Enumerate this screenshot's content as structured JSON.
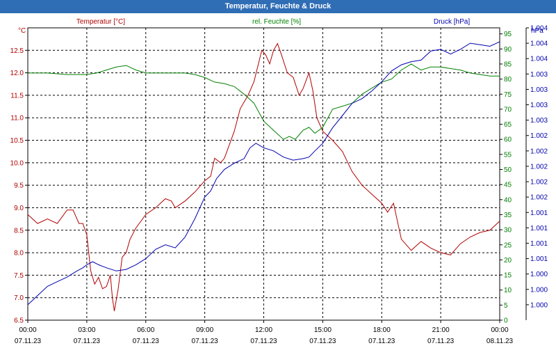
{
  "window": {
    "title": "Temperatur, Feuchte & Druck"
  },
  "colors": {
    "temp": "#b00000",
    "hum": "#008000",
    "press": "#0000b0",
    "axis": "#000000",
    "grid": "#000000",
    "titlebar": "#2f6db5"
  },
  "chart_data": {
    "type": "line",
    "title": "Temperatur, Feuchte & Druck",
    "grid": true,
    "x_ticks": [
      {
        "time": "00:00",
        "date": "07.11.23"
      },
      {
        "time": "03:00",
        "date": "07.11.23"
      },
      {
        "time": "06:00",
        "date": "07.11.23"
      },
      {
        "time": "09:00",
        "date": "07.11.23"
      },
      {
        "time": "12:00",
        "date": "07.11.23"
      },
      {
        "time": "15:00",
        "date": "07.11.23"
      },
      {
        "time": "18:00",
        "date": "07.11.23"
      },
      {
        "time": "21:00",
        "date": "07.11.23"
      },
      {
        "time": "00:00",
        "date": "08.11.23"
      }
    ],
    "x_range_hours": [
      0,
      24
    ],
    "axes": {
      "temp": {
        "unit": "°C",
        "range": [
          6.5,
          13.0
        ],
        "ticks": [
          "6.5",
          "7.0",
          "7.5",
          "8.0",
          "8.5",
          "9.0",
          "9.5",
          "10.0",
          "10.5",
          "11.0",
          "11.5",
          "12.0",
          "12.5"
        ]
      },
      "hum": {
        "unit": "%",
        "range": [
          0,
          97
        ],
        "ticks": [
          "0",
          "5",
          "10",
          "15",
          "20",
          "25",
          "30",
          "35",
          "40",
          "45",
          "50",
          "55",
          "60",
          "65",
          "70",
          "75",
          "80",
          "85",
          "90",
          "95"
        ]
      },
      "press": {
        "unit": "hPa",
        "range": [
          0,
          19
        ],
        "ticks": [
          "1.000",
          "1.000",
          "1.000",
          "1.001",
          "1.001",
          "1.001",
          "1.001",
          "1.002",
          "1.002",
          "1.002",
          "1.002",
          "1.002",
          "1.003",
          "1.003",
          "1.003",
          "1.003",
          "1.004",
          "1.004",
          "1.004"
        ]
      }
    },
    "series": [
      {
        "name": "Temperatur [°C]",
        "axis": "temp",
        "points": [
          [
            0,
            8.85
          ],
          [
            0.5,
            8.65
          ],
          [
            1,
            8.75
          ],
          [
            1.5,
            8.65
          ],
          [
            2,
            8.95
          ],
          [
            2.3,
            8.95
          ],
          [
            2.6,
            8.65
          ],
          [
            2.8,
            8.65
          ],
          [
            3,
            8.4
          ],
          [
            3.2,
            7.6
          ],
          [
            3.4,
            7.3
          ],
          [
            3.6,
            7.45
          ],
          [
            3.8,
            7.2
          ],
          [
            4,
            7.25
          ],
          [
            4.2,
            7.5
          ],
          [
            4.3,
            7.0
          ],
          [
            4.4,
            6.7
          ],
          [
            4.6,
            7.2
          ],
          [
            4.8,
            7.9
          ],
          [
            5.0,
            8.0
          ],
          [
            5.2,
            8.3
          ],
          [
            5.5,
            8.55
          ],
          [
            6,
            8.85
          ],
          [
            6.5,
            9.0
          ],
          [
            7,
            9.2
          ],
          [
            7.3,
            9.15
          ],
          [
            7.5,
            9.0
          ],
          [
            8,
            9.15
          ],
          [
            8.5,
            9.35
          ],
          [
            9,
            9.6
          ],
          [
            9.3,
            9.7
          ],
          [
            9.5,
            10.1
          ],
          [
            9.8,
            10.0
          ],
          [
            10,
            10.1
          ],
          [
            10.5,
            10.7
          ],
          [
            10.8,
            11.2
          ],
          [
            11.2,
            11.5
          ],
          [
            11.5,
            11.8
          ],
          [
            11.9,
            12.5
          ],
          [
            12.1,
            12.4
          ],
          [
            12.3,
            12.2
          ],
          [
            12.5,
            12.5
          ],
          [
            12.7,
            12.65
          ],
          [
            12.9,
            12.4
          ],
          [
            13.2,
            12.0
          ],
          [
            13.5,
            11.9
          ],
          [
            13.8,
            11.5
          ],
          [
            14.0,
            11.65
          ],
          [
            14.3,
            12.0
          ],
          [
            14.5,
            11.6
          ],
          [
            14.7,
            11.0
          ],
          [
            15.0,
            10.7
          ],
          [
            15.5,
            10.5
          ],
          [
            16,
            10.25
          ],
          [
            16.5,
            9.8
          ],
          [
            17,
            9.5
          ],
          [
            17.5,
            9.3
          ],
          [
            18,
            9.1
          ],
          [
            18.3,
            8.9
          ],
          [
            18.6,
            9.1
          ],
          [
            19,
            8.3
          ],
          [
            19.5,
            8.05
          ],
          [
            20,
            8.25
          ],
          [
            20.5,
            8.1
          ],
          [
            21,
            8.0
          ],
          [
            21.5,
            7.95
          ],
          [
            22,
            8.2
          ],
          [
            22.5,
            8.35
          ],
          [
            23,
            8.45
          ],
          [
            23.5,
            8.5
          ],
          [
            24,
            8.7
          ]
        ]
      },
      {
        "name": "rel. Feuchte [%]",
        "axis": "hum",
        "points": [
          [
            0,
            82
          ],
          [
            1,
            82
          ],
          [
            2,
            81.5
          ],
          [
            3,
            81.5
          ],
          [
            3.5,
            82
          ],
          [
            4,
            83
          ],
          [
            4.5,
            84
          ],
          [
            5,
            84.5
          ],
          [
            5.5,
            83
          ],
          [
            6,
            82
          ],
          [
            7,
            82
          ],
          [
            8,
            82
          ],
          [
            8.5,
            81.5
          ],
          [
            9,
            80.5
          ],
          [
            9.5,
            79
          ],
          [
            10,
            78.5
          ],
          [
            10.5,
            77.5
          ],
          [
            11,
            75
          ],
          [
            11.5,
            72
          ],
          [
            12,
            66
          ],
          [
            12.5,
            63
          ],
          [
            13,
            60
          ],
          [
            13.3,
            61
          ],
          [
            13.6,
            60
          ],
          [
            14,
            63
          ],
          [
            14.3,
            64
          ],
          [
            14.6,
            62
          ],
          [
            15,
            64
          ],
          [
            15.5,
            70
          ],
          [
            16,
            71
          ],
          [
            16.5,
            72
          ],
          [
            17,
            75
          ],
          [
            17.5,
            77
          ],
          [
            18,
            79
          ],
          [
            18.5,
            80
          ],
          [
            19,
            83
          ],
          [
            19.5,
            85
          ],
          [
            20,
            83
          ],
          [
            20.5,
            84
          ],
          [
            21,
            84
          ],
          [
            21.5,
            83.5
          ],
          [
            22,
            83
          ],
          [
            22.5,
            82
          ],
          [
            23,
            81.5
          ],
          [
            23.5,
            81
          ],
          [
            24,
            81
          ]
        ]
      },
      {
        "name": "Druck [hPa]",
        "axis": "press",
        "points": [
          [
            0,
            1.0
          ],
          [
            0.5,
            1.6
          ],
          [
            1,
            2.2
          ],
          [
            1.5,
            2.5
          ],
          [
            2,
            2.8
          ],
          [
            2.5,
            3.2
          ],
          [
            2.8,
            3.4
          ],
          [
            3,
            3.6
          ],
          [
            3.3,
            3.8
          ],
          [
            3.6,
            3.6
          ],
          [
            4,
            3.4
          ],
          [
            4.5,
            3.2
          ],
          [
            5,
            3.3
          ],
          [
            5.5,
            3.6
          ],
          [
            6,
            4.0
          ],
          [
            6.5,
            4.6
          ],
          [
            7,
            4.9
          ],
          [
            7.5,
            4.7
          ],
          [
            8,
            5.4
          ],
          [
            8.5,
            6.6
          ],
          [
            9,
            8.0
          ],
          [
            9.3,
            8.4
          ],
          [
            9.6,
            9.2
          ],
          [
            10,
            9.8
          ],
          [
            10.5,
            10.2
          ],
          [
            11,
            10.5
          ],
          [
            11.3,
            11.2
          ],
          [
            11.6,
            11.5
          ],
          [
            12,
            11.2
          ],
          [
            12.5,
            11.0
          ],
          [
            13,
            10.6
          ],
          [
            13.5,
            10.4
          ],
          [
            14,
            10.5
          ],
          [
            14.3,
            10.6
          ],
          [
            14.6,
            11.0
          ],
          [
            15,
            11.5
          ],
          [
            15.5,
            12.5
          ],
          [
            16,
            13.3
          ],
          [
            16.5,
            14.1
          ],
          [
            17,
            14.4
          ],
          [
            17.5,
            14.9
          ],
          [
            18,
            15.5
          ],
          [
            18.5,
            16.2
          ],
          [
            19,
            16.6
          ],
          [
            19.5,
            16.8
          ],
          [
            20,
            16.9
          ],
          [
            20.5,
            17.5
          ],
          [
            21,
            17.6
          ],
          [
            21.5,
            17.3
          ],
          [
            22,
            17.6
          ],
          [
            22.5,
            18.0
          ],
          [
            23,
            17.9
          ],
          [
            23.5,
            17.8
          ],
          [
            24,
            18.1
          ]
        ]
      }
    ]
  }
}
